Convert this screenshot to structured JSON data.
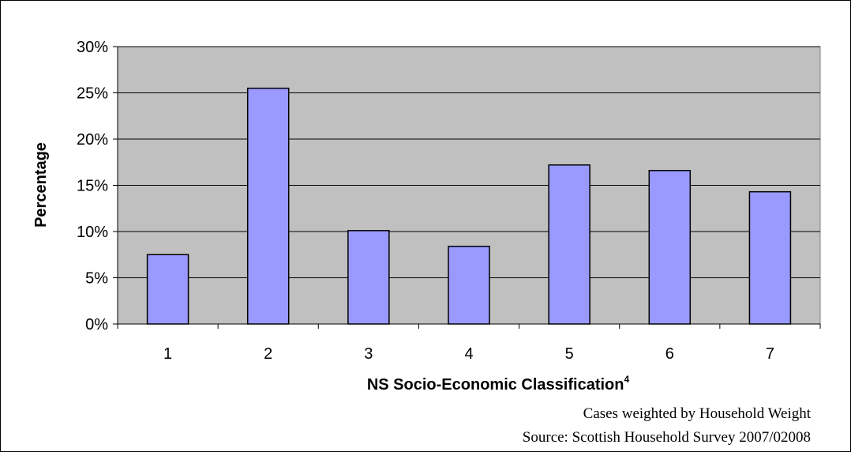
{
  "chart_data": {
    "type": "bar",
    "categories": [
      "1",
      "2",
      "3",
      "4",
      "5",
      "6",
      "7"
    ],
    "values": [
      7.5,
      25.5,
      10.1,
      8.4,
      17.2,
      16.6,
      14.3
    ],
    "ylim": [
      0,
      30
    ],
    "yticks": [
      0,
      5,
      10,
      15,
      20,
      25,
      30
    ],
    "ytick_labels": [
      "0%",
      "5%",
      "10%",
      "15%",
      "20%",
      "25%",
      "30%"
    ],
    "xlabel": "NS Socio-Economic Classification",
    "xlabel_superscript": "4",
    "ylabel": "Percentage",
    "grid": true,
    "legend": "none",
    "colors": {
      "bar_fill": "#9999ff",
      "plot_background": "#c0c0c0",
      "gridline": "#000000"
    }
  },
  "notes": {
    "weighting": "Cases weighted by Household Weight",
    "source": "Source: Scottish Household Survey 2007/02008"
  }
}
